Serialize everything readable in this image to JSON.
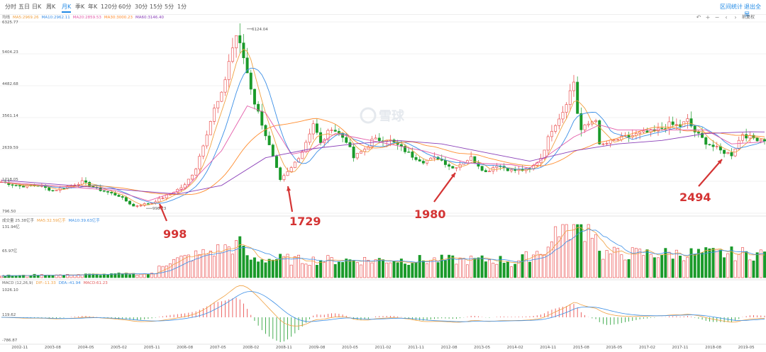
{
  "toolbar": {
    "tabs": [
      "分时",
      "五日",
      "日K",
      "周K",
      "月K",
      "季K",
      "年K",
      "120分",
      "60分",
      "30分",
      "15分",
      "5分",
      "1分"
    ],
    "active_tab": "月K",
    "right_links": [
      "区间统计",
      "退出全屏"
    ],
    "fq_label": "前复权",
    "controls": [
      "↶",
      "+",
      "−",
      "‹",
      "›"
    ]
  },
  "watermark": "雪球",
  "price_legend": [
    {
      "label": "均线",
      "color": "#666666"
    },
    {
      "label": "MA5:2969.26",
      "color": "#f0a040"
    },
    {
      "label": "MA10:2962.11",
      "color": "#3a8ee6"
    },
    {
      "label": "MA20:2859.53",
      "color": "#e35aa8"
    },
    {
      "label": "MA30:3000.23",
      "color": "#ff8c2e"
    },
    {
      "label": "MA60:3146.40",
      "color": "#8a3fb8"
    }
  ],
  "volume_legend": [
    {
      "label": "成交量 25.38亿手",
      "color": "#666666"
    },
    {
      "label": "MA5:32.59亿手",
      "color": "#f0a040"
    },
    {
      "label": "MA10:39.63亿手",
      "color": "#3a8ee6"
    }
  ],
  "macd_legend": [
    {
      "label": "MACD (12,26,9)",
      "color": "#666666"
    },
    {
      "label": "DIF:-11.33",
      "color": "#f0a040"
    },
    {
      "label": "DEA:-41.94",
      "color": "#3a8ee6"
    },
    {
      "label": "MACD:61.23",
      "color": "#e35a5a"
    }
  ],
  "colors": {
    "up": "#e84040",
    "down": "#1a9a2a",
    "ma5": "#f0a040",
    "ma10": "#3a8ee6",
    "ma20": "#e35aa8",
    "ma30": "#ff8c2e",
    "ma60": "#8a3fb8",
    "arrow": "#d43434"
  },
  "chart_data": {
    "type": "candlestick",
    "title": "",
    "price_axis_ticks": [
      "6325.77",
      "5404.23",
      "4482.68",
      "3561.14",
      "2639.59",
      "1718.05",
      "796.50"
    ],
    "volume_axis_ticks": [
      "131.94亿",
      "65.97亿",
      "0.00"
    ],
    "macd_axis_ticks": [
      "1026.10",
      "119.62",
      "-786.87"
    ],
    "x_tick_labels": [
      "2002-11",
      "2003-08",
      "2004-05",
      "2005-02",
      "2005-11",
      "2006-08",
      "2007-05",
      "2008-02",
      "2008-11",
      "2009-08",
      "2010-05",
      "2011-02",
      "2011-11",
      "2012-08",
      "2013-05",
      "2014-02",
      "2014-11",
      "2015-08",
      "2016-05",
      "2017-02",
      "2017-11",
      "2018-08",
      "2019-05"
    ],
    "x_range": [
      "2002-06",
      "2019-10"
    ],
    "price_range": [
      796.5,
      6325.77
    ],
    "price_labels": [
      {
        "value": 6124.04,
        "label": "6124.04"
      },
      {
        "value": 998.23,
        "label": "998.23"
      }
    ],
    "annotations": [
      {
        "label": "998",
        "date": "2005-06",
        "value": 998.23
      },
      {
        "label": "1729",
        "date": "2008-10",
        "value": 1729
      },
      {
        "label": "1980",
        "date": "2013-06",
        "value": 1980
      },
      {
        "label": "2494",
        "date": "2019-01",
        "value": 2494
      }
    ],
    "close_path": [
      [
        "2002-06",
        1700
      ],
      [
        "2002-11",
        1580
      ],
      [
        "2003-04",
        1600
      ],
      [
        "2003-08",
        1450
      ],
      [
        "2004-04",
        1700
      ],
      [
        "2004-08",
        1500
      ],
      [
        "2005-02",
        1300
      ],
      [
        "2005-06",
        998
      ],
      [
        "2005-11",
        1100
      ],
      [
        "2006-03",
        1300
      ],
      [
        "2006-08",
        1600
      ],
      [
        "2006-11",
        2100
      ],
      [
        "2007-01",
        2800
      ],
      [
        "2007-04",
        3800
      ],
      [
        "2007-06",
        4200
      ],
      [
        "2007-08",
        5200
      ],
      [
        "2007-10",
        5950
      ],
      [
        "2007-12",
        5300
      ],
      [
        "2008-03",
        4000
      ],
      [
        "2008-05",
        3400
      ],
      [
        "2008-08",
        2400
      ],
      [
        "2008-10",
        1728
      ],
      [
        "2009-01",
        2100
      ],
      [
        "2009-04",
        2600
      ],
      [
        "2009-07",
        3400
      ],
      [
        "2009-09",
        2800
      ],
      [
        "2009-12",
        3280
      ],
      [
        "2010-04",
        2900
      ],
      [
        "2010-06",
        2400
      ],
      [
        "2010-09",
        2650
      ],
      [
        "2010-11",
        2900
      ],
      [
        "2011-03",
        2950
      ],
      [
        "2011-06",
        2760
      ],
      [
        "2011-10",
        2450
      ],
      [
        "2012-01",
        2300
      ],
      [
        "2012-05",
        2400
      ],
      [
        "2012-09",
        2100
      ],
      [
        "2012-12",
        2280
      ],
      [
        "2013-02",
        2400
      ],
      [
        "2013-06",
        1980
      ],
      [
        "2013-09",
        2200
      ],
      [
        "2014-01",
        2030
      ],
      [
        "2014-06",
        2050
      ],
      [
        "2014-09",
        2400
      ],
      [
        "2014-12",
        3230
      ],
      [
        "2015-03",
        3750
      ],
      [
        "2015-06",
        4600
      ],
      [
        "2015-07",
        3700
      ],
      [
        "2015-08",
        3200
      ],
      [
        "2015-12",
        3540
      ],
      [
        "2016-01",
        2740
      ],
      [
        "2016-06",
        2930
      ],
      [
        "2016-12",
        3100
      ],
      [
        "2017-04",
        3150
      ],
      [
        "2017-08",
        3360
      ],
      [
        "2017-11",
        3320
      ],
      [
        "2018-01",
        3480
      ],
      [
        "2018-03",
        3150
      ],
      [
        "2018-06",
        2850
      ],
      [
        "2018-10",
        2600
      ],
      [
        "2019-01",
        2494
      ],
      [
        "2019-04",
        3100
      ],
      [
        "2019-06",
        2980
      ],
      [
        "2019-10",
        2930
      ]
    ],
    "ma60_path": [
      [
        "2002-06",
        1750
      ],
      [
        "2004-01",
        1600
      ],
      [
        "2005-06",
        1450
      ],
      [
        "2006-06",
        1350
      ],
      [
        "2007-06",
        1600
      ],
      [
        "2008-06",
        2400
      ],
      [
        "2009-06",
        2650
      ],
      [
        "2010-06",
        2800
      ],
      [
        "2011-06",
        2900
      ],
      [
        "2012-06",
        2800
      ],
      [
        "2013-06",
        2550
      ],
      [
        "2014-06",
        2300
      ],
      [
        "2015-06",
        2600
      ],
      [
        "2016-06",
        2800
      ],
      [
        "2017-06",
        2900
      ],
      [
        "2018-06",
        3100
      ],
      [
        "2019-06",
        3150
      ],
      [
        "2019-10",
        3146.4
      ]
    ],
    "ma20_path": [
      [
        "2002-06",
        1700
      ],
      [
        "2004-01",
        1550
      ],
      [
        "2005-01",
        1450
      ],
      [
        "2005-10",
        1150
      ],
      [
        "2006-08",
        1500
      ],
      [
        "2007-06",
        2600
      ],
      [
        "2008-01",
        3900
      ],
      [
        "2008-06",
        3700
      ],
      [
        "2009-01",
        2500
      ],
      [
        "2009-06",
        2600
      ],
      [
        "2010-01",
        3100
      ],
      [
        "2011-01",
        2850
      ],
      [
        "2012-01",
        2600
      ],
      [
        "2013-01",
        2250
      ],
      [
        "2014-01",
        2200
      ],
      [
        "2014-06",
        2100
      ],
      [
        "2015-06",
        3000
      ],
      [
        "2016-01",
        3350
      ],
      [
        "2016-06",
        3200
      ],
      [
        "2017-06",
        3200
      ],
      [
        "2018-06",
        3200
      ],
      [
        "2019-01",
        2800
      ],
      [
        "2019-10",
        2859.53
      ]
    ]
  }
}
